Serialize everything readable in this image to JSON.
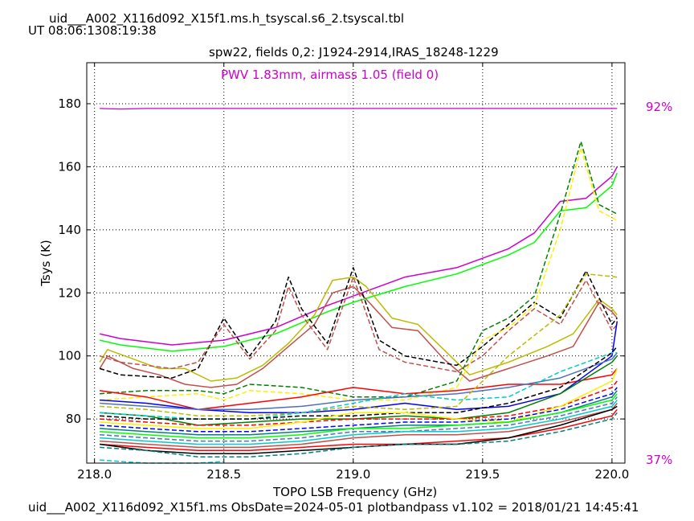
{
  "header": {
    "table_name": "uid___A002_X116d092_X15f1.ms.h_tsyscal.s6_2.tsyscal.tbl",
    "ut_time": "UT 08:06:1308:19:38"
  },
  "footer": {
    "text": "uid___A002_X116d092_X15f1.ms  ObsDate=2024-05-01   plotbandpass v1.102 = 2018/01/21 14:45:41"
  },
  "chart_data": {
    "type": "line",
    "title": "spw22,  fields 0,2: J1924-2914,IRAS_18248-1229",
    "subtitle": "PWV 1.83mm, airmass 1.05 (field 0)",
    "xlabel": "TOPO LSB Frequency (GHz)",
    "ylabel": "Tsys (K)",
    "xlim": [
      217.97,
      220.05
    ],
    "ylim": [
      66,
      193
    ],
    "xticks": [
      "218.0",
      "218.5",
      "219.0",
      "219.5",
      "220.0"
    ],
    "yticks": [
      "80",
      "100",
      "120",
      "140",
      "160",
      "180"
    ],
    "grid": true,
    "right_labels": {
      "top": "92%",
      "bottom": "37%"
    },
    "accent_color": "#cc00cc",
    "atm_transmission": {
      "color": "#cc00cc",
      "x": [
        218.02,
        218.1,
        218.2,
        219.0,
        219.5,
        220.02
      ],
      "y": [
        178.5,
        178.3,
        178.5,
        178.5,
        178.5,
        178.5
      ]
    },
    "series": [
      {
        "color": "#cc00cc",
        "dash": false,
        "x": [
          218.02,
          218.1,
          218.3,
          218.5,
          218.7,
          218.9,
          219.0,
          219.2,
          219.4,
          219.6,
          219.7,
          219.8,
          219.9,
          220.0,
          220.02
        ],
        "y": [
          107,
          105.5,
          103.5,
          105,
          109,
          116,
          119,
          125,
          128,
          134,
          139,
          149,
          150,
          157,
          160
        ]
      },
      {
        "color": "#00ff00",
        "dash": false,
        "x": [
          218.02,
          218.1,
          218.3,
          218.5,
          218.7,
          218.9,
          219.0,
          219.2,
          219.4,
          219.6,
          219.7,
          219.8,
          219.9,
          220.0,
          220.02
        ],
        "y": [
          105,
          103.5,
          101.5,
          103,
          107,
          114,
          117,
          122,
          126,
          132,
          136,
          146,
          147,
          154,
          158
        ]
      },
      {
        "color": "#bbbb00",
        "dash": false,
        "x": [
          218.02,
          218.05,
          218.15,
          218.25,
          218.35,
          218.45,
          218.55,
          218.65,
          218.75,
          218.85,
          218.92,
          219.0,
          219.05,
          219.15,
          219.25,
          219.35,
          219.45,
          219.6,
          219.75,
          219.85,
          219.95,
          220.0,
          220.02
        ],
        "y": [
          98,
          102,
          99,
          96,
          96,
          92,
          93,
          97,
          104,
          113,
          124,
          125,
          122,
          112,
          110,
          102,
          94,
          98,
          103,
          107,
          118,
          115,
          113
        ]
      },
      {
        "color": "#c0504d",
        "dash": false,
        "x": [
          218.02,
          218.05,
          218.15,
          218.25,
          218.35,
          218.45,
          218.55,
          218.65,
          218.75,
          218.85,
          218.92,
          219.0,
          219.05,
          219.15,
          219.25,
          219.35,
          219.45,
          219.6,
          219.75,
          219.85,
          219.95,
          220.0,
          220.02
        ],
        "y": [
          96,
          100,
          96,
          94,
          91,
          90,
          91,
          96,
          103,
          110,
          120,
          122,
          118,
          109,
          108,
          99,
          92,
          96,
          100,
          103,
          117,
          114,
          112
        ]
      },
      {
        "color": "#000000",
        "dash": true,
        "x": [
          218.02,
          218.1,
          218.3,
          218.4,
          218.5,
          218.6,
          218.7,
          218.75,
          218.8,
          218.9,
          219.0,
          219.1,
          219.2,
          219.4,
          219.5,
          219.6,
          219.7,
          219.8,
          219.9,
          220.0,
          220.02
        ],
        "y": [
          96,
          94,
          93,
          96,
          112,
          100,
          111,
          125,
          115,
          104,
          128,
          105,
          100,
          97,
          103,
          110,
          117,
          112,
          127,
          110,
          112
        ]
      },
      {
        "color": "#c0504d",
        "dash": true,
        "x": [
          218.02,
          218.1,
          218.3,
          218.4,
          218.5,
          218.6,
          218.7,
          218.75,
          218.8,
          218.9,
          219.0,
          219.1,
          219.2,
          219.4,
          219.5,
          219.6,
          219.7,
          219.8,
          219.9,
          220.0,
          220.02
        ],
        "y": [
          100,
          98,
          96,
          98,
          110,
          99,
          108,
          122,
          113,
          102,
          125,
          102,
          98,
          95,
          100,
          108,
          115,
          110,
          124,
          108,
          110
        ]
      },
      {
        "color": "#008000",
        "dash": true,
        "x": [
          218.02,
          218.2,
          218.4,
          218.5,
          218.6,
          218.8,
          219.0,
          219.2,
          219.4,
          219.5,
          219.6,
          219.7,
          219.8,
          219.88,
          219.95,
          220.02
        ],
        "y": [
          88,
          89,
          89,
          88,
          91,
          90,
          87,
          87,
          92,
          108,
          112,
          119,
          145,
          168,
          148,
          145
        ]
      },
      {
        "color": "#ffee00",
        "dash": true,
        "x": [
          218.02,
          218.2,
          218.4,
          218.5,
          218.6,
          218.8,
          219.0,
          219.2,
          219.4,
          219.5,
          219.6,
          219.7,
          219.8,
          219.88,
          219.95,
          220.02
        ],
        "y": [
          86,
          87,
          88,
          86,
          89,
          88,
          86,
          86,
          90,
          105,
          109,
          116,
          140,
          166,
          146,
          143
        ]
      },
      {
        "color": "#ff0000",
        "dash": false,
        "x": [
          218.02,
          218.2,
          218.4,
          218.6,
          218.8,
          219.0,
          219.2,
          219.4,
          219.6,
          219.8,
          220.0,
          220.02
        ],
        "y": [
          89,
          87,
          83,
          85,
          87,
          90,
          88,
          89,
          91,
          91,
          94,
          96
        ]
      },
      {
        "color": "#0000ff",
        "dash": false,
        "x": [
          218.02,
          218.2,
          218.4,
          218.6,
          218.8,
          219.0,
          219.2,
          219.4,
          219.6,
          219.8,
          220.0,
          220.02
        ],
        "y": [
          86,
          85,
          83,
          82,
          82,
          83,
          85,
          83,
          84,
          88,
          100,
          111
        ]
      },
      {
        "color": "#4f6fbf",
        "dash": false,
        "x": [
          218.02,
          218.2,
          218.4,
          218.6,
          218.8,
          219.0,
          219.2,
          219.4,
          219.6,
          219.8,
          220.0,
          220.02
        ],
        "y": [
          85,
          84,
          83,
          83,
          84,
          86,
          87,
          88,
          90,
          93,
          99,
          101
        ]
      },
      {
        "color": "#bbbb00",
        "dash": true,
        "x": [
          218.02,
          218.2,
          218.4,
          218.6,
          218.8,
          219.0,
          219.2,
          219.4,
          219.6,
          219.8,
          219.9,
          220.02
        ],
        "y": [
          84,
          83,
          81,
          81,
          82,
          84,
          83,
          84,
          100,
          113,
          126,
          125
        ]
      },
      {
        "color": "#008000",
        "dash": false,
        "x": [
          218.02,
          218.2,
          218.4,
          218.6,
          218.8,
          219.0,
          219.2,
          219.4,
          219.6,
          219.8,
          220.0,
          220.02
        ],
        "y": [
          82,
          81,
          78,
          79,
          80,
          80,
          81,
          80,
          82,
          88,
          98,
          100
        ]
      },
      {
        "color": "#00cccc",
        "dash": true,
        "x": [
          218.02,
          218.2,
          218.4,
          218.6,
          218.8,
          219.0,
          219.2,
          219.4,
          219.6,
          219.8,
          220.0,
          220.02
        ],
        "y": [
          82,
          81,
          80,
          80,
          82,
          85,
          88,
          86,
          87,
          95,
          101,
          101
        ]
      },
      {
        "color": "#000000",
        "dash": true,
        "x": [
          218.02,
          218.2,
          218.4,
          218.6,
          218.8,
          219.0,
          219.2,
          219.4,
          219.6,
          219.8,
          220.0,
          220.02
        ],
        "y": [
          81,
          80,
          80,
          80,
          81,
          81,
          82,
          82,
          85,
          90,
          101,
          103
        ]
      },
      {
        "color": "#ff0000",
        "dash": true,
        "x": [
          218.02,
          218.2,
          218.4,
          218.6,
          218.8,
          219.0,
          219.2,
          219.4,
          219.6,
          219.8,
          220.0,
          220.02
        ],
        "y": [
          80,
          79,
          78,
          78,
          79,
          80,
          80,
          80,
          81,
          84,
          90,
          92
        ]
      },
      {
        "color": "#ffee00",
        "dash": false,
        "x": [
          218.02,
          218.2,
          218.4,
          218.6,
          218.8,
          219.0,
          219.2,
          219.4,
          219.6,
          219.8,
          220.0,
          220.02
        ],
        "y": [
          79,
          78,
          77,
          77,
          79,
          82,
          82,
          80,
          79,
          84,
          92,
          96
        ]
      },
      {
        "color": "#0000ff",
        "dash": true,
        "x": [
          218.02,
          218.2,
          218.4,
          218.6,
          218.8,
          219.0,
          219.2,
          219.4,
          219.6,
          219.8,
          220.0,
          220.02
        ],
        "y": [
          78,
          77,
          76,
          76,
          77,
          78,
          79,
          79,
          80,
          83,
          88,
          90
        ]
      },
      {
        "color": "#008080",
        "dash": false,
        "x": [
          218.02,
          218.2,
          218.4,
          218.6,
          218.8,
          219.0,
          219.2,
          219.4,
          219.6,
          219.8,
          220.0,
          220.02
        ],
        "y": [
          77,
          76,
          75,
          75,
          76,
          77,
          78,
          78,
          79,
          82,
          87,
          89
        ]
      },
      {
        "color": "#00ff00",
        "dash": false,
        "x": [
          218.02,
          218.2,
          218.4,
          218.6,
          218.8,
          219.0,
          219.2,
          219.4,
          219.6,
          219.8,
          220.0,
          220.02
        ],
        "y": [
          76,
          75,
          74,
          74,
          75,
          77,
          77,
          78,
          79,
          82,
          86,
          88
        ]
      },
      {
        "color": "#4f6fbf",
        "dash": true,
        "x": [
          218.02,
          218.2,
          218.4,
          218.6,
          218.8,
          219.0,
          219.2,
          219.4,
          219.6,
          219.8,
          220.0,
          220.02
        ],
        "y": [
          75,
          74,
          73,
          73,
          74,
          76,
          76,
          77,
          78,
          81,
          85,
          87
        ]
      },
      {
        "color": "#00cccc",
        "dash": false,
        "x": [
          218.02,
          218.2,
          218.4,
          218.6,
          218.8,
          219.0,
          219.2,
          219.4,
          219.6,
          219.8,
          220.0,
          220.02
        ],
        "y": [
          74,
          73,
          72,
          72,
          73,
          75,
          76,
          76,
          77,
          80,
          84,
          86
        ]
      },
      {
        "color": "#c0504d",
        "dash": false,
        "x": [
          218.02,
          218.2,
          218.4,
          218.6,
          218.8,
          219.0,
          219.2,
          219.4,
          219.6,
          219.8,
          220.0,
          220.02
        ],
        "y": [
          73,
          72,
          71,
          71,
          72,
          74,
          75,
          75,
          76,
          79,
          83,
          85
        ]
      },
      {
        "color": "#ff0000",
        "dash": false,
        "x": [
          218.02,
          218.2,
          218.4,
          218.6,
          218.8,
          219.0,
          219.2,
          219.4,
          219.6,
          219.8,
          220.0,
          220.02
        ],
        "y": [
          72,
          71,
          70,
          70,
          71,
          72,
          72,
          73,
          74,
          77,
          81,
          83
        ]
      },
      {
        "color": "#000000",
        "dash": false,
        "x": [
          218.02,
          218.2,
          218.4,
          218.6,
          218.8,
          219.0,
          219.2,
          219.4,
          219.6,
          219.8,
          220.0,
          220.02
        ],
        "y": [
          72,
          70,
          69,
          69,
          70,
          71,
          72,
          72,
          74,
          78,
          83,
          84
        ]
      },
      {
        "color": "#008080",
        "dash": true,
        "x": [
          218.02,
          218.2,
          218.4,
          218.6,
          218.8,
          219.0,
          219.2,
          219.4,
          219.6,
          219.8,
          220.0,
          220.02
        ],
        "y": [
          71,
          70,
          68,
          68,
          69,
          71,
          72,
          72,
          73,
          76,
          80,
          82
        ]
      },
      {
        "color": "#00cccc",
        "dash": true,
        "x": [
          218.02,
          218.1,
          218.2,
          218.4,
          218.5
        ],
        "y": [
          67,
          66.5,
          66,
          66,
          66.5
        ]
      }
    ]
  }
}
